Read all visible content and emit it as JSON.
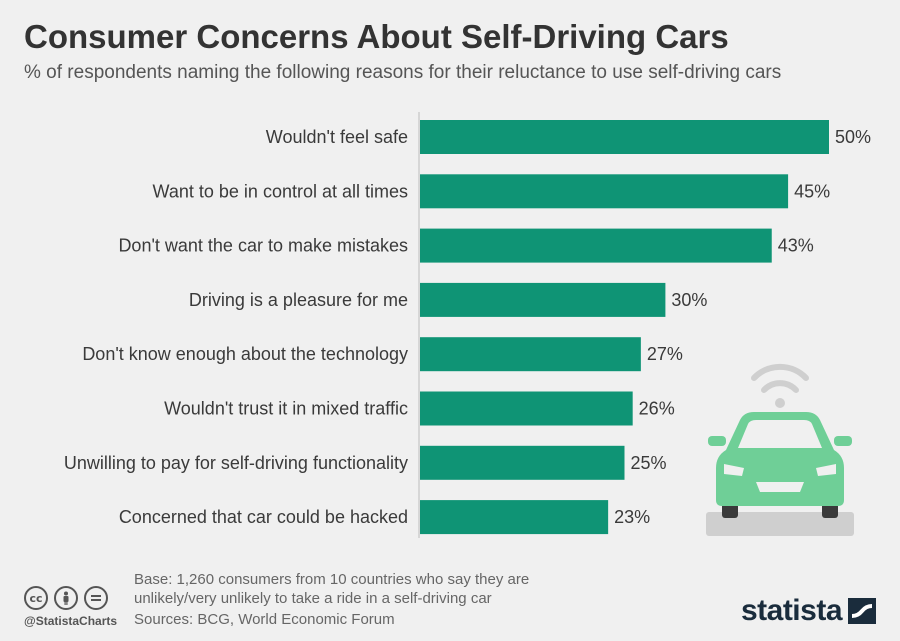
{
  "header": {
    "title": "Consumer Concerns About Self-Driving Cars",
    "subtitle": "% of respondents naming the following reasons for their reluctance to use self-driving cars"
  },
  "chart_data": {
    "type": "bar",
    "orientation": "horizontal",
    "title": "Consumer Concerns About Self-Driving Cars",
    "subtitle": "% of respondents naming the following reasons for their reluctance to use self-driving cars",
    "categories": [
      "Wouldn't feel safe",
      "Want to be in control at all times",
      "Don't want the car to make mistakes",
      "Driving is a pleasure for me",
      "Don't know enough about the technology",
      "Wouldn't trust it in mixed traffic",
      "Unwilling to pay for self-driving functionality",
      "Concerned that car could be hacked"
    ],
    "values": [
      50,
      45,
      43,
      30,
      27,
      26,
      25,
      23
    ],
    "value_labels": [
      "50%",
      "45%",
      "43%",
      "30%",
      "27%",
      "26%",
      "25%",
      "23%"
    ],
    "unit": "%",
    "xlim": [
      0,
      50
    ],
    "grid": false,
    "legend": "none",
    "bar_color": "#0f9475"
  },
  "illustration": {
    "name": "self-driving car with wifi signal",
    "car_color": "#6fcf97",
    "wheel_color": "#3a3a3a",
    "ground_color": "#cfcfcf"
  },
  "footer": {
    "license_icons": [
      "cc",
      "by",
      "nd"
    ],
    "handle": "@StatistaCharts",
    "base_note": "Base: 1,260 consumers from 10 countries who say they are unlikely/very unlikely to take a ride in a self-driving car",
    "sources": "Sources: BCG, World Economic Forum",
    "brand": "statista"
  },
  "colors": {
    "background": "#f0f0f0",
    "bar": "#0f9475",
    "text": "#3a3a3a",
    "brand_dark": "#1a2c3c"
  }
}
